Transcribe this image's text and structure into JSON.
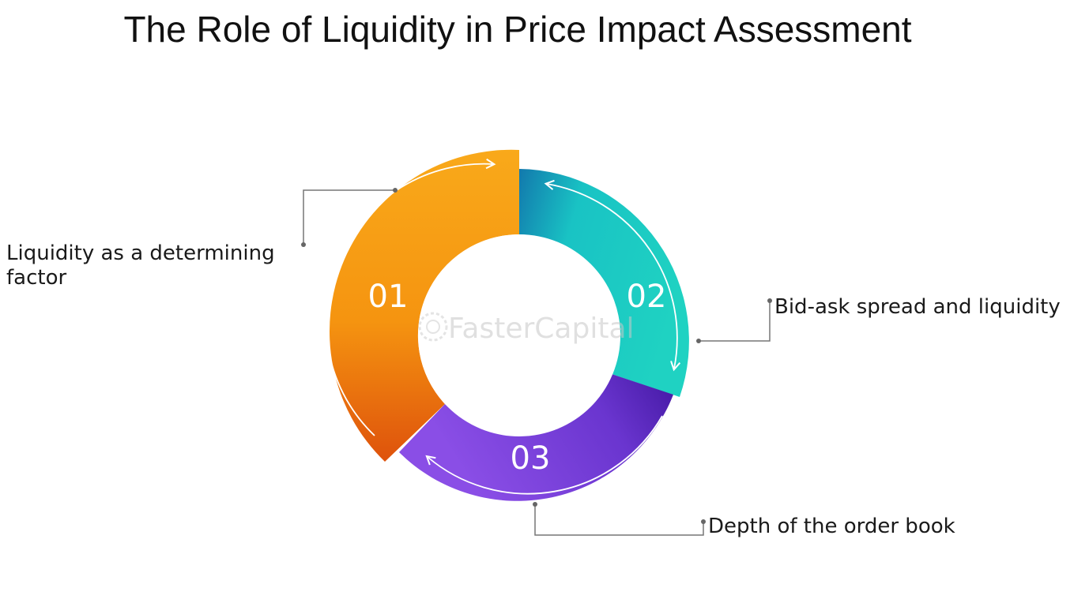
{
  "title": "The Role of Liquidity in Price Impact Assessment",
  "watermark": "FasterCapital",
  "segments": [
    {
      "number": "01",
      "label": "Liquidity as a determining factor",
      "color_start": "#f7a21b",
      "color_end": "#e0560c"
    },
    {
      "number": "02",
      "label": "Bid-ask spread and liquidity",
      "color_start": "#1ecfc2",
      "color_end": "#117fb0"
    },
    {
      "number": "03",
      "label": "Depth of the order book",
      "color_start": "#7d43dc",
      "color_end": "#3c129c"
    }
  ],
  "colors": {
    "connector": "#777777",
    "text": "#1a1a1a",
    "watermark": "#c8c8c8"
  }
}
